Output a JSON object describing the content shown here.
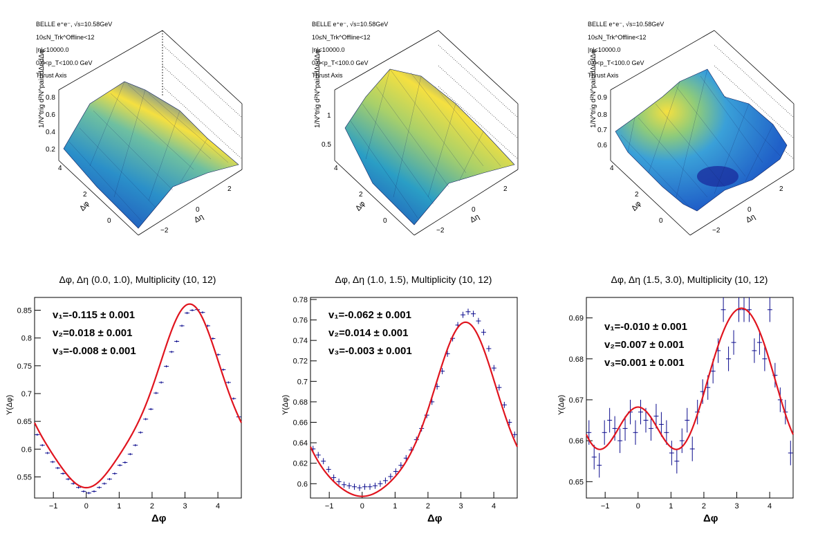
{
  "top_panels": [
    {
      "info": [
        "BELLE e⁺e⁻, √s=10.58GeV",
        "10≤N_Trk^Offline<12",
        "|η|<10000.0",
        "0.0<p_T<100.0 GeV",
        "Thrust Axis"
      ],
      "zlabel": "1/N^trig d²N^pair/dΔηdΔφ",
      "z_ticks": [
        "0.2",
        "0.4",
        "0.6",
        "0.8"
      ],
      "phi_ticks": [
        "0",
        "2",
        "4"
      ],
      "eta_ticks": [
        "−2",
        "0",
        "2"
      ],
      "xlabel": "Δφ",
      "ylabel": "Δη"
    },
    {
      "info": [
        "BELLE e⁺e⁻, √s=10.58GeV",
        "10≤N_Trk^Offline<12",
        "|η|<10000.0",
        "0.0<p_T<100.0 GeV",
        "Thrust Axis"
      ],
      "zlabel": "1/N^trig d²N^pair/dΔηdΔφ",
      "z_ticks": [
        "0.5",
        "1"
      ],
      "phi_ticks": [
        "0",
        "2",
        "4"
      ],
      "eta_ticks": [
        "−2",
        "0",
        "2"
      ],
      "xlabel": "Δφ",
      "ylabel": "Δη"
    },
    {
      "info": [
        "BELLE e⁺e⁻, √s=10.58GeV",
        "10≤N_Trk^Offline<12",
        "|η|<10000.0",
        "0.0<p_T<100.0 GeV",
        "Thrust Axis"
      ],
      "zlabel": "1/N^trig d²N^pair/dΔηdΔφ",
      "z_ticks": [
        "0.6",
        "0.7",
        "0.8",
        "0.9"
      ],
      "phi_ticks": [
        "0",
        "2",
        "4"
      ],
      "eta_ticks": [
        "−2",
        "0",
        "2"
      ],
      "xlabel": "Δφ",
      "ylabel": "Δη"
    }
  ],
  "colors": {
    "fit": "#e0141e",
    "points": "#0a0a8c"
  },
  "chart_data": [
    {
      "type": "scatter",
      "title": "Δφ, Δη (0.0, 1.0), Multiplicity (10, 12)",
      "xlabel": "Δφ",
      "ylabel": "Y(Δφ)",
      "xlim": [
        -1.571,
        4.712
      ],
      "ylim": [
        0.512,
        0.873
      ],
      "yticks": [
        0.55,
        0.6,
        0.65,
        0.7,
        0.75,
        0.8,
        0.85
      ],
      "xticks": [
        -1,
        0,
        1,
        2,
        3,
        4
      ],
      "fit": {
        "a0": 0.6717,
        "v1": -0.115,
        "v2": 0.018,
        "v3": -0.008
      },
      "annotations": [
        "v₁=-0.115 ± 0.001",
        "v₂=0.018 ± 0.001",
        "v₃=-0.008 ± 0.001"
      ],
      "x": [
        -1.492,
        -1.335,
        -1.178,
        -1.021,
        -0.864,
        -0.707,
        -0.55,
        -0.393,
        -0.236,
        -0.079,
        0.079,
        0.236,
        0.393,
        0.55,
        0.707,
        0.864,
        1.021,
        1.178,
        1.335,
        1.492,
        1.649,
        1.806,
        1.963,
        2.121,
        2.278,
        2.435,
        2.592,
        2.749,
        2.906,
        3.063,
        3.22,
        3.377,
        3.534,
        3.691,
        3.848,
        4.005,
        4.163,
        4.32,
        4.477,
        4.634
      ],
      "y": [
        0.626,
        0.607,
        0.593,
        0.577,
        0.566,
        0.556,
        0.546,
        0.538,
        0.531,
        0.524,
        0.521,
        0.524,
        0.531,
        0.538,
        0.546,
        0.556,
        0.571,
        0.576,
        0.591,
        0.607,
        0.63,
        0.654,
        0.672,
        0.701,
        0.72,
        0.749,
        0.775,
        0.794,
        0.822,
        0.845,
        0.85,
        0.851,
        0.846,
        0.822,
        0.799,
        0.77,
        0.743,
        0.72,
        0.691,
        0.658
      ],
      "yerr": 0.002
    },
    {
      "type": "scatter",
      "title": "Δφ, Δη (1.0, 1.5), Multiplicity (10, 12)",
      "xlabel": "Δφ",
      "ylabel": "Y(Δφ)",
      "xlim": [
        -1.571,
        4.712
      ],
      "ylim": [
        0.586,
        0.782
      ],
      "yticks": [
        0.6,
        0.62,
        0.64,
        0.66,
        0.68,
        0.7,
        0.72,
        0.74,
        0.76,
        0.78
      ],
      "xticks": [
        -1,
        0,
        1,
        2,
        3,
        4
      ],
      "fit": {
        "a0": 0.6544,
        "v1": -0.062,
        "v2": 0.014,
        "v3": -0.003
      },
      "annotations": [
        "v₁=-0.062 ± 0.001",
        "v₂=0.014 ± 0.001",
        "v₃=-0.003 ± 0.001"
      ],
      "x": [
        -1.492,
        -1.335,
        -1.178,
        -1.021,
        -0.864,
        -0.707,
        -0.55,
        -0.393,
        -0.236,
        -0.079,
        0.079,
        0.236,
        0.393,
        0.55,
        0.707,
        0.864,
        1.021,
        1.178,
        1.335,
        1.492,
        1.649,
        1.806,
        1.963,
        2.121,
        2.278,
        2.435,
        2.592,
        2.749,
        2.906,
        3.063,
        3.22,
        3.377,
        3.534,
        3.691,
        3.848,
        4.005,
        4.163,
        4.32,
        4.477,
        4.634
      ],
      "y": [
        0.634,
        0.628,
        0.622,
        0.614,
        0.606,
        0.602,
        0.599,
        0.598,
        0.597,
        0.596,
        0.597,
        0.597,
        0.598,
        0.6,
        0.603,
        0.607,
        0.612,
        0.618,
        0.625,
        0.633,
        0.643,
        0.654,
        0.667,
        0.68,
        0.695,
        0.71,
        0.727,
        0.742,
        0.755,
        0.765,
        0.768,
        0.766,
        0.759,
        0.748,
        0.732,
        0.713,
        0.694,
        0.677,
        0.66,
        0.648
      ],
      "yerr": 0.003
    },
    {
      "type": "scatter",
      "title": "Δφ, Δη (1.5, 3.0), Multiplicity (10, 12)",
      "xlabel": "Δφ",
      "ylabel": "Y(Δφ)",
      "xlim": [
        -1.571,
        4.712
      ],
      "ylim": [
        0.646,
        0.695
      ],
      "yticks": [
        0.65,
        0.66,
        0.67,
        0.68,
        0.69
      ],
      "xticks": [
        -1,
        0,
        1,
        2,
        3,
        4
      ],
      "fit": {
        "a0": 0.6709,
        "v1": -0.01,
        "v2": 0.007,
        "v3": 0.001
      },
      "annotations": [
        "v₁=-0.010 ± 0.001",
        "v₂=0.007 ± 0.001",
        "v₃=0.001 ± 0.001"
      ],
      "x": [
        -1.492,
        -1.335,
        -1.178,
        -1.021,
        -0.864,
        -0.707,
        -0.55,
        -0.393,
        -0.236,
        -0.079,
        0.079,
        0.236,
        0.393,
        0.55,
        0.707,
        0.864,
        1.021,
        1.178,
        1.335,
        1.492,
        1.649,
        1.806,
        1.963,
        2.121,
        2.278,
        2.435,
        2.592,
        2.749,
        2.906,
        3.063,
        3.22,
        3.377,
        3.534,
        3.691,
        3.848,
        4.005,
        4.163,
        4.32,
        4.477,
        4.634
      ],
      "y": [
        0.662,
        0.656,
        0.654,
        0.662,
        0.665,
        0.663,
        0.66,
        0.663,
        0.667,
        0.662,
        0.667,
        0.665,
        0.663,
        0.666,
        0.664,
        0.662,
        0.657,
        0.655,
        0.66,
        0.665,
        0.658,
        0.667,
        0.672,
        0.673,
        0.677,
        0.682,
        0.692,
        0.68,
        0.684,
        0.692,
        0.692,
        0.692,
        0.682,
        0.684,
        0.68,
        0.692,
        0.676,
        0.67,
        0.667,
        0.657
      ],
      "yerr": 0.003
    }
  ]
}
